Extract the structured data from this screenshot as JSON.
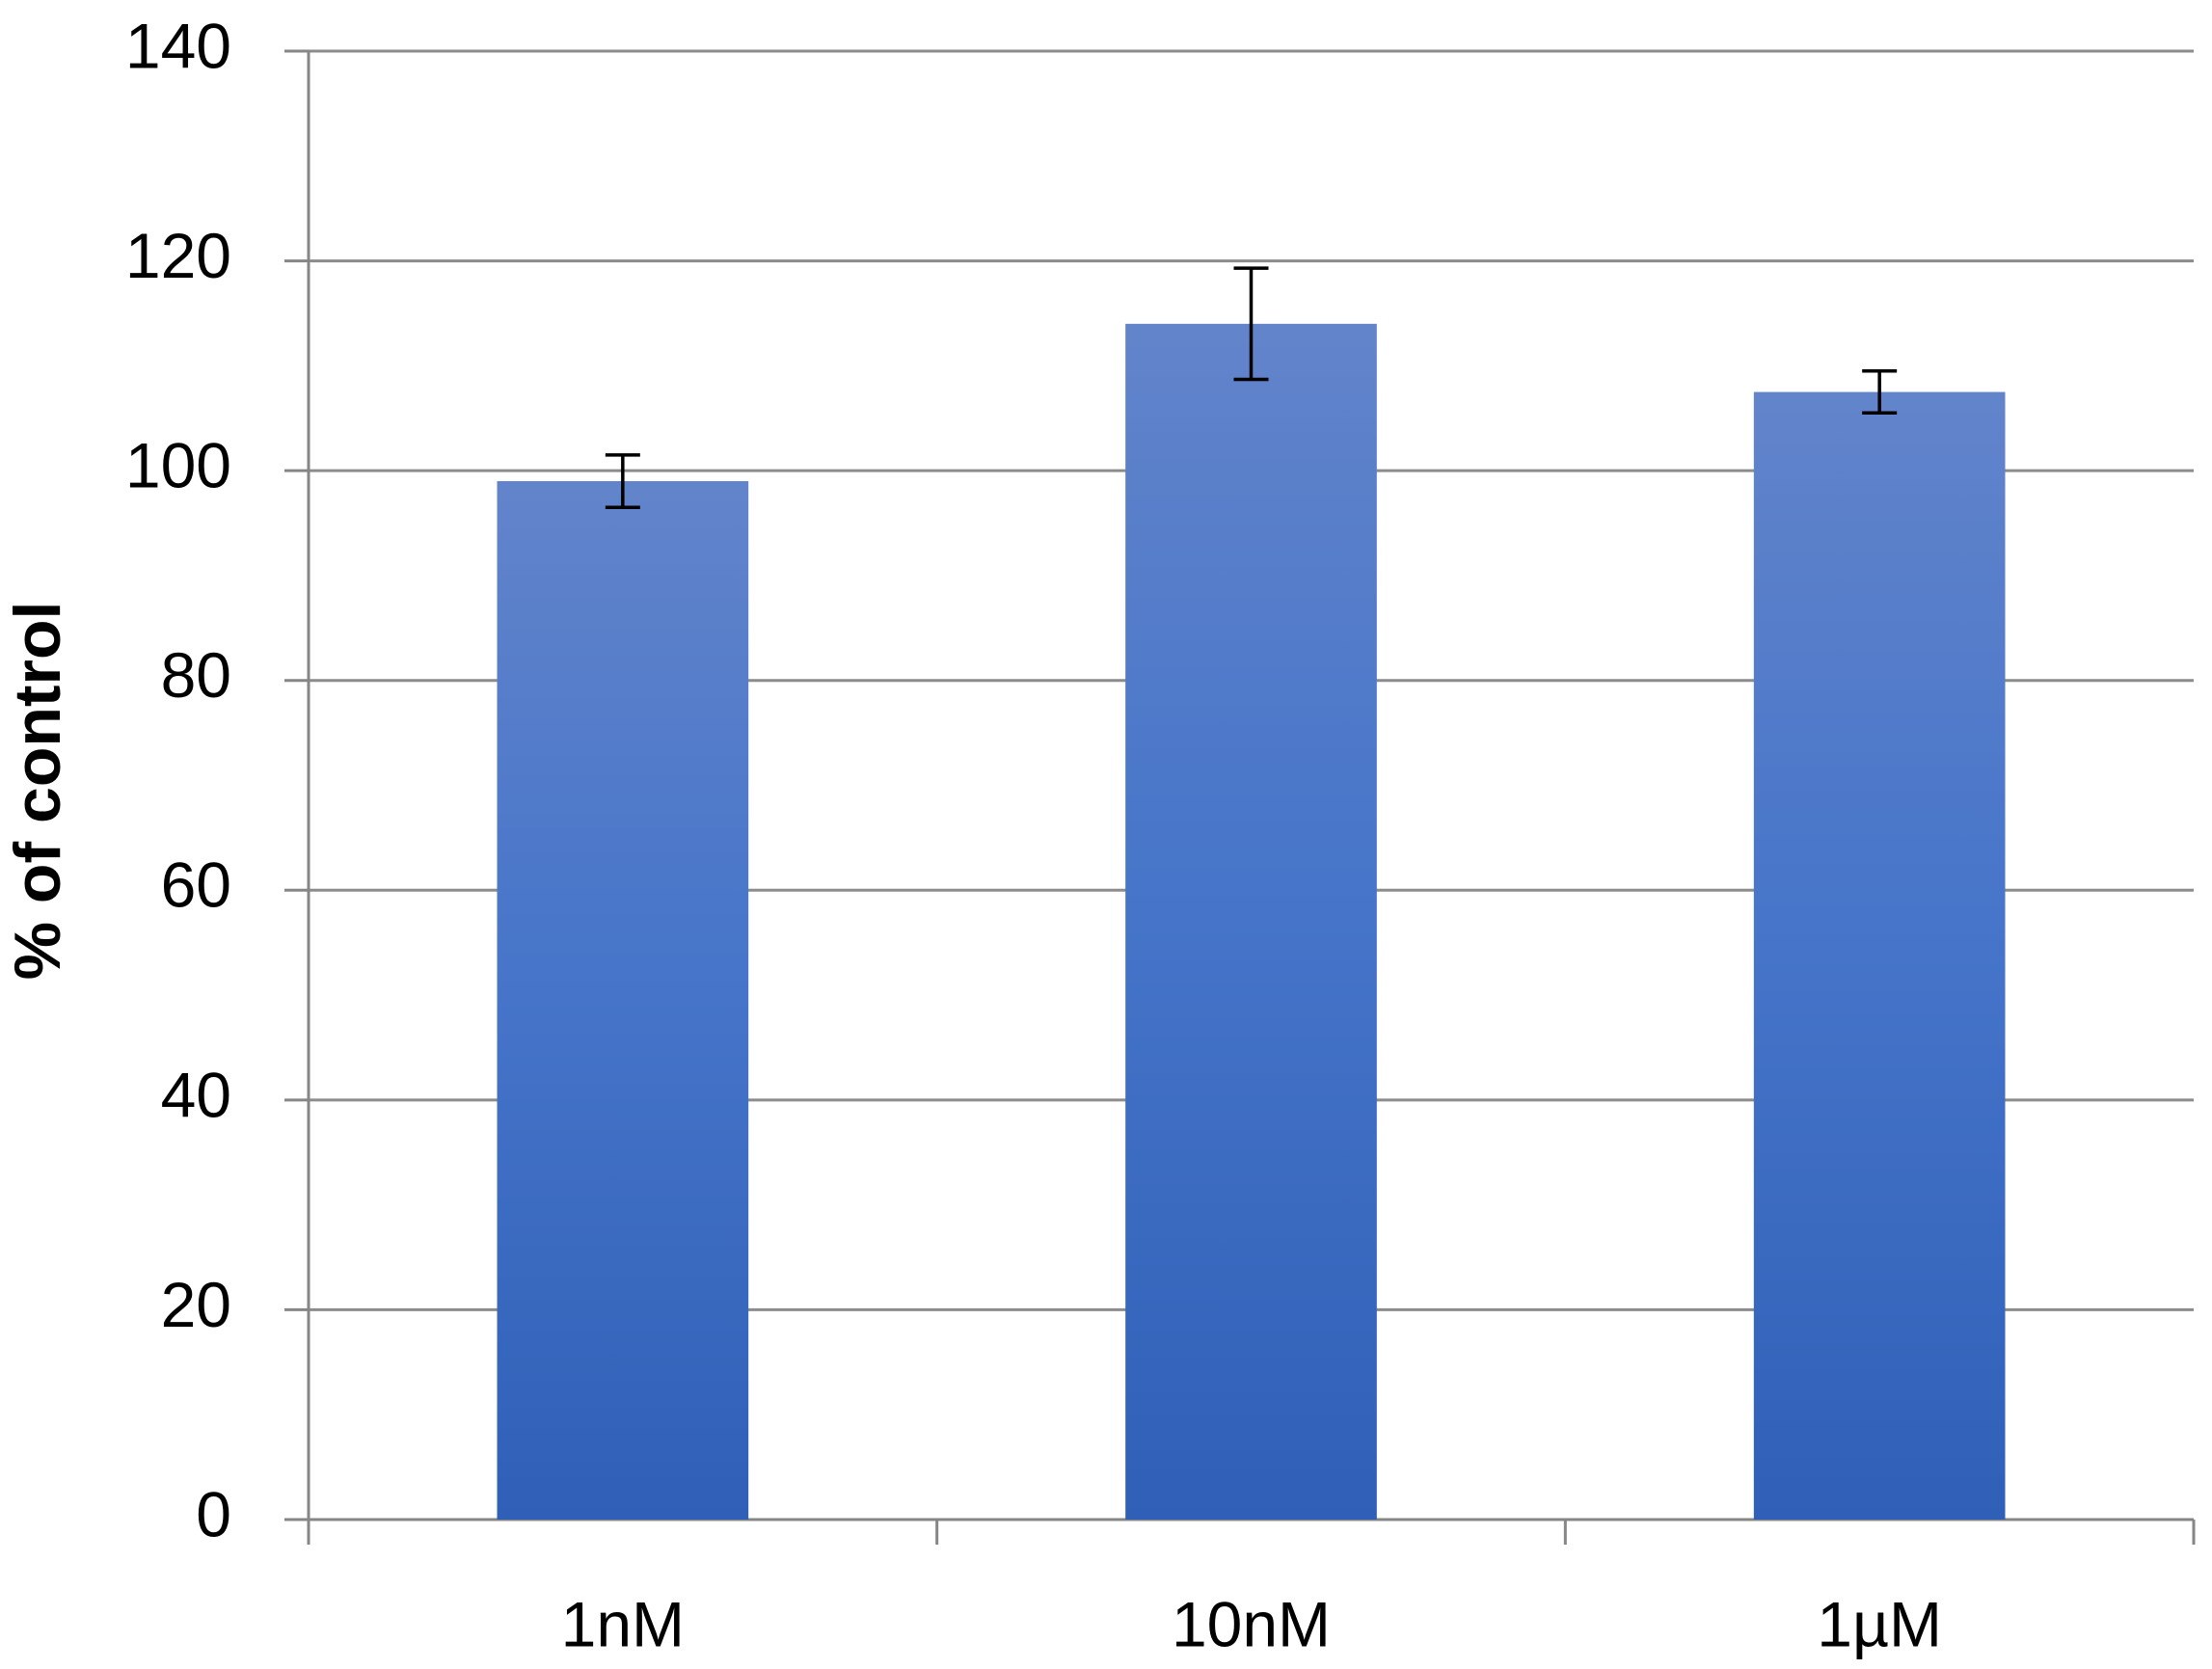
{
  "chart_data": {
    "type": "bar",
    "y_label": "% of control",
    "categories": [
      "1nM",
      "10nM",
      "1µM"
    ],
    "values": [
      99,
      114,
      107.5
    ],
    "errors": [
      2.5,
      5.3,
      2
    ],
    "ylim": [
      0,
      140
    ],
    "yticks": [
      0,
      20,
      40,
      60,
      80,
      100,
      120,
      140
    ],
    "grid": true
  }
}
